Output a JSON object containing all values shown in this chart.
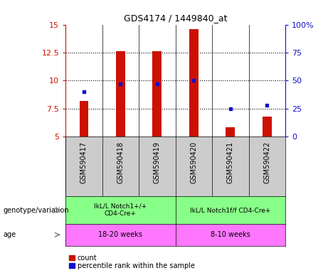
{
  "title": "GDS4174 / 1449840_at",
  "samples": [
    "GSM590417",
    "GSM590418",
    "GSM590419",
    "GSM590420",
    "GSM590421",
    "GSM590422"
  ],
  "counts": [
    8.2,
    12.6,
    12.6,
    14.6,
    5.8,
    6.8
  ],
  "percentile_ranks": [
    40,
    47,
    47,
    50,
    25,
    28
  ],
  "ylim_left": [
    5,
    15
  ],
  "ylim_right": [
    0,
    100
  ],
  "yticks_left": [
    5,
    7.5,
    10,
    12.5,
    15
  ],
  "yticks_right": [
    0,
    25,
    50,
    75,
    100
  ],
  "bar_color": "#cc1100",
  "dot_color": "#1111cc",
  "bar_base": 5.0,
  "bar_width": 0.25,
  "genotype_groups": [
    {
      "label": "IkL/L Notch1+/+\nCD4-Cre+",
      "span": [
        0,
        3
      ]
    },
    {
      "label": "IkL/L Notch1f/f CD4-Cre+",
      "span": [
        3,
        6
      ]
    }
  ],
  "age_groups": [
    {
      "label": "18-20 weeks",
      "span": [
        0,
        3
      ]
    },
    {
      "label": "8-10 weeks",
      "span": [
        3,
        6
      ]
    }
  ],
  "genotype_bg": "#88ff88",
  "age_bg": "#ff77ff",
  "sample_bg": "#cccccc",
  "left_label_genotype": "genotype/variation",
  "left_label_age": "age",
  "legend_count_label": "count",
  "legend_percentile_label": "percentile rank within the sample",
  "left_axis_color": "#cc1100",
  "right_axis_color": "#1111cc"
}
